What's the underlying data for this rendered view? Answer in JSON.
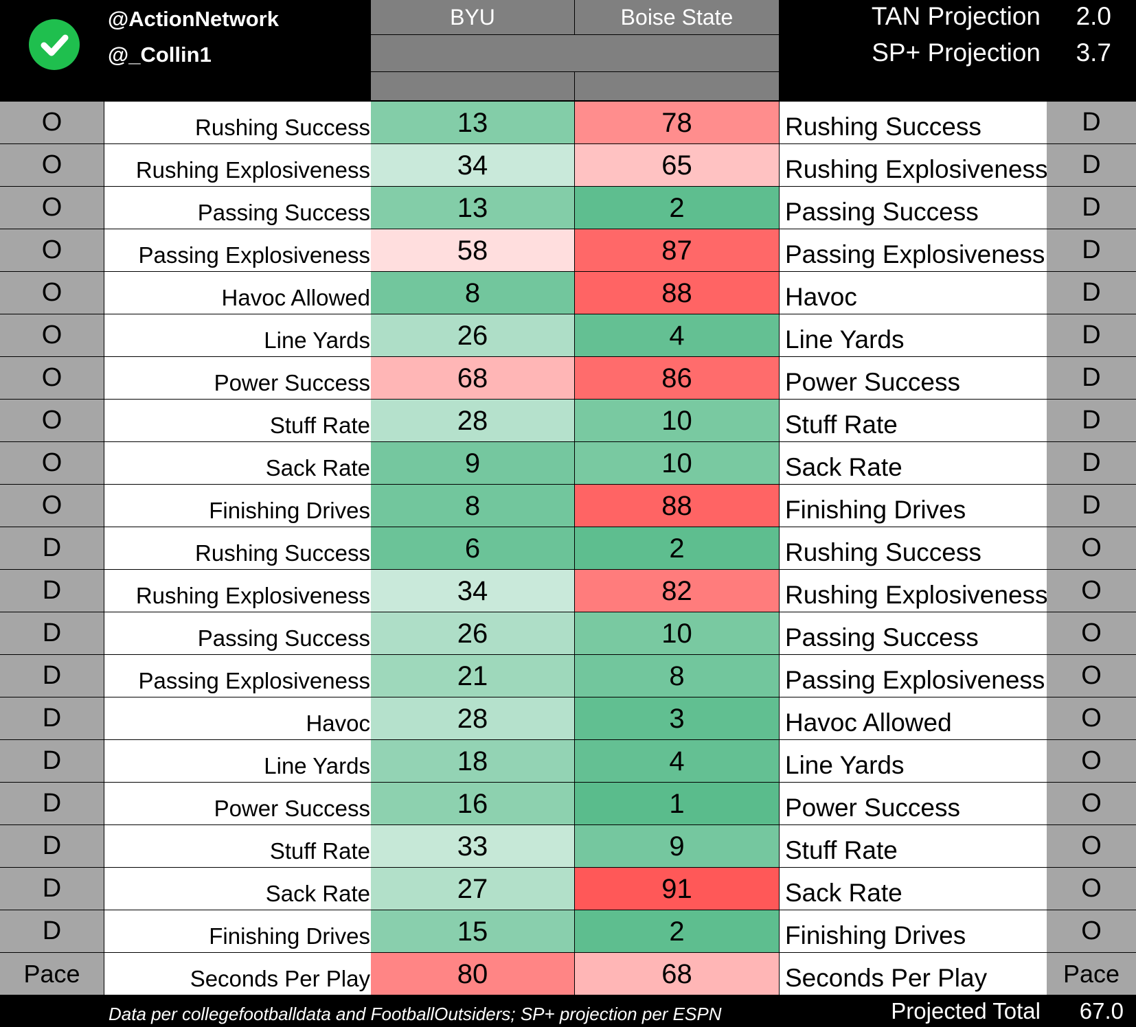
{
  "header": {
    "handle_1": "@ActionNetwork",
    "handle_2": "@_Collin1",
    "team_1": "BYU",
    "team_2": "Boise State",
    "tan_projection_label": "TAN Projection",
    "tan_projection_value": "2.0",
    "sp_projection_label": "SP+ Projection",
    "sp_projection_value": "3.7",
    "badge_icon": "check-circle-icon",
    "badge_color": "#1fbf4e"
  },
  "rows": [
    {
      "left_side": "O",
      "left_label": "Rushing Success",
      "byu": 13,
      "bsu": 78,
      "right_label": "Rushing Success",
      "right_side": "D"
    },
    {
      "left_side": "O",
      "left_label": "Rushing Explosiveness",
      "byu": 34,
      "bsu": 65,
      "right_label": "Rushing Explosiveness",
      "right_side": "D"
    },
    {
      "left_side": "O",
      "left_label": "Passing Success",
      "byu": 13,
      "bsu": 2,
      "right_label": "Passing Success",
      "right_side": "D"
    },
    {
      "left_side": "O",
      "left_label": "Passing Explosiveness",
      "byu": 58,
      "bsu": 87,
      "right_label": "Passing Explosiveness",
      "right_side": "D"
    },
    {
      "left_side": "O",
      "left_label": "Havoc Allowed",
      "byu": 8,
      "bsu": 88,
      "right_label": "Havoc",
      "right_side": "D"
    },
    {
      "left_side": "O",
      "left_label": "Line Yards",
      "byu": 26,
      "bsu": 4,
      "right_label": "Line Yards",
      "right_side": "D"
    },
    {
      "left_side": "O",
      "left_label": "Power Success",
      "byu": 68,
      "bsu": 86,
      "right_label": "Power Success",
      "right_side": "D"
    },
    {
      "left_side": "O",
      "left_label": "Stuff Rate",
      "byu": 28,
      "bsu": 10,
      "right_label": "Stuff Rate",
      "right_side": "D"
    },
    {
      "left_side": "O",
      "left_label": "Sack Rate",
      "byu": 9,
      "bsu": 10,
      "right_label": "Sack Rate",
      "right_side": "D"
    },
    {
      "left_side": "O",
      "left_label": "Finishing Drives",
      "byu": 8,
      "bsu": 88,
      "right_label": "Finishing Drives",
      "right_side": "D"
    },
    {
      "left_side": "D",
      "left_label": "Rushing Success",
      "byu": 6,
      "bsu": 2,
      "right_label": "Rushing Success",
      "right_side": "O"
    },
    {
      "left_side": "D",
      "left_label": "Rushing Explosiveness",
      "byu": 34,
      "bsu": 82,
      "right_label": "Rushing Explosiveness",
      "right_side": "O"
    },
    {
      "left_side": "D",
      "left_label": "Passing Success",
      "byu": 26,
      "bsu": 10,
      "right_label": "Passing Success",
      "right_side": "O"
    },
    {
      "left_side": "D",
      "left_label": "Passing Explosiveness",
      "byu": 21,
      "bsu": 8,
      "right_label": "Passing Explosiveness",
      "right_side": "O"
    },
    {
      "left_side": "D",
      "left_label": "Havoc",
      "byu": 28,
      "bsu": 3,
      "right_label": "Havoc Allowed",
      "right_side": "O"
    },
    {
      "left_side": "D",
      "left_label": "Line Yards",
      "byu": 18,
      "bsu": 4,
      "right_label": "Line Yards",
      "right_side": "O"
    },
    {
      "left_side": "D",
      "left_label": "Power Success",
      "byu": 16,
      "bsu": 1,
      "right_label": "Power Success",
      "right_side": "O"
    },
    {
      "left_side": "D",
      "left_label": "Stuff Rate",
      "byu": 33,
      "bsu": 9,
      "right_label": "Stuff Rate",
      "right_side": "O"
    },
    {
      "left_side": "D",
      "left_label": "Sack Rate",
      "byu": 27,
      "bsu": 91,
      "right_label": "Sack Rate",
      "right_side": "O"
    },
    {
      "left_side": "D",
      "left_label": "Finishing Drives",
      "byu": 15,
      "bsu": 2,
      "right_label": "Finishing Drives",
      "right_side": "O"
    },
    {
      "left_side": "Pace",
      "left_label": "Seconds Per Play",
      "byu": 80,
      "bsu": 68,
      "right_label": "Seconds Per Play",
      "right_side": "Pace"
    }
  ],
  "footer": {
    "note": "Data per collegefootballdata and FootballOutsiders; SP+ projection per ESPN",
    "projected_total_label": "Projected Total",
    "projected_total_value": "67.0"
  },
  "colors": {
    "header_band": "#808080",
    "side_cell": "#a6a6a6",
    "background": "#000000",
    "good_scale": "#57bb8a",
    "bad_scale": "#ff3333"
  }
}
